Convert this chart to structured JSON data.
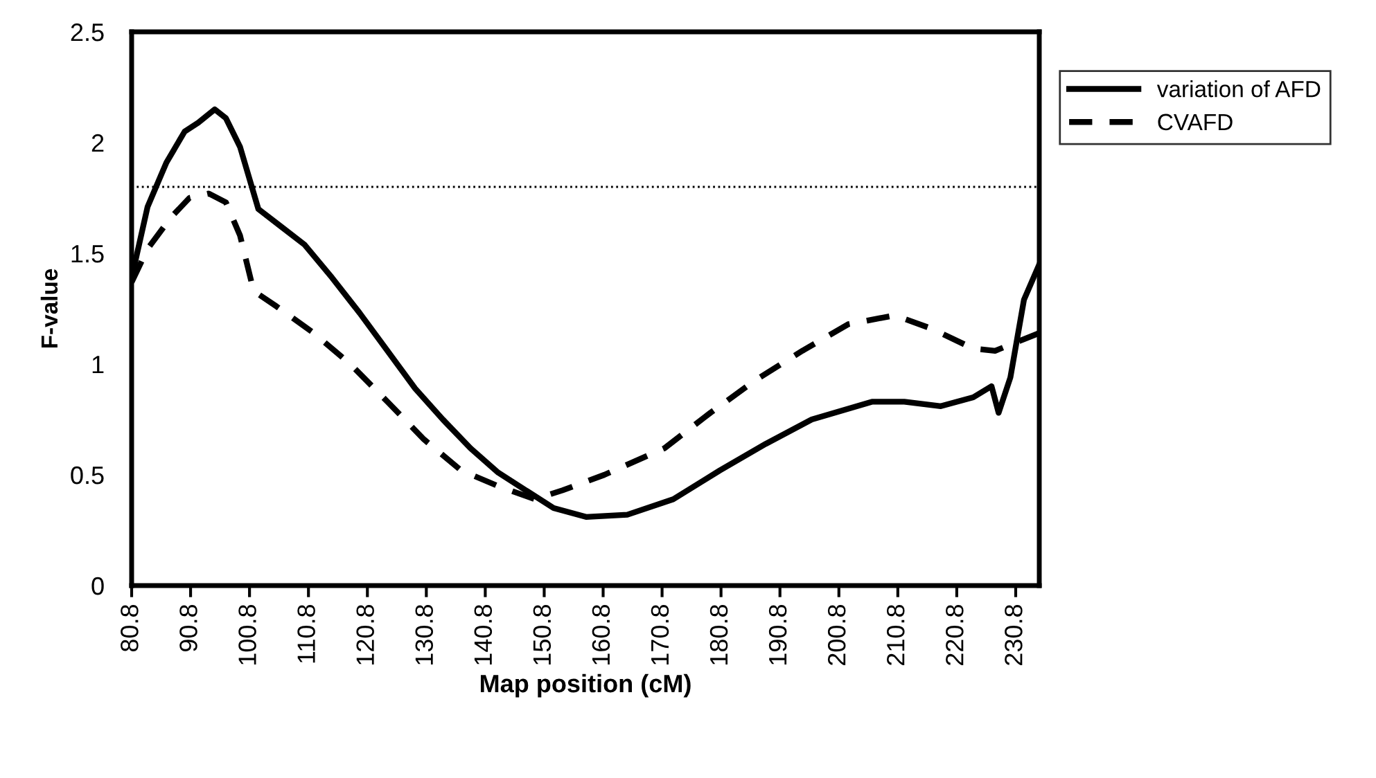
{
  "chart_data": {
    "type": "line",
    "xlabel": "Map position (cM)",
    "ylabel": "F-value",
    "xlim": [
      80.8,
      234.8
    ],
    "xticks": [
      80.8,
      90.8,
      100.8,
      110.8,
      120.8,
      130.8,
      140.8,
      150.8,
      160.8,
      170.8,
      180.8,
      190.8,
      200.8,
      210.8,
      220.8,
      230.8
    ],
    "ylim": [
      0,
      2.5
    ],
    "yticks": [
      0,
      0.5,
      1,
      1.5,
      2,
      2.5
    ],
    "grid": false,
    "legend": "top right",
    "marker": "none",
    "ref_lines": [
      {
        "axis": "y",
        "value": 1.8,
        "color": "#000000",
        "line_style": "dotted"
      }
    ],
    "series": [
      {
        "name": "variation of AFD",
        "color": "#000000",
        "line_style": "solid",
        "x": [
          80.8,
          83.5,
          86.7,
          89.8,
          92.1,
          94.9,
          96.8,
          99.2,
          102.3,
          106.2,
          110.1,
          114.8,
          119.5,
          124.2,
          128.9,
          133.6,
          138.3,
          143.0,
          147.7,
          152.4,
          157.9,
          164.9,
          172.7,
          180.6,
          188.4,
          196.2,
          206.4,
          211.9,
          218.1,
          223.6,
          226.7,
          227.9,
          229.9,
          232.2,
          234.8
        ],
        "values": [
          1.39,
          1.71,
          1.91,
          2.05,
          2.09,
          2.15,
          2.11,
          1.98,
          1.7,
          1.62,
          1.54,
          1.39,
          1.23,
          1.06,
          0.89,
          0.75,
          0.62,
          0.51,
          0.43,
          0.35,
          0.31,
          0.32,
          0.39,
          0.52,
          0.64,
          0.75,
          0.83,
          0.83,
          0.81,
          0.85,
          0.9,
          0.78,
          0.94,
          1.29,
          1.45
        ]
      },
      {
        "name": "CVAFD",
        "color": "#000000",
        "line_style": "dashed",
        "x": [
          80.8,
          83.5,
          87.4,
          90.6,
          93.9,
          96.8,
          99.2,
          101.5,
          105.4,
          111.7,
          117.9,
          124.2,
          130.4,
          136.7,
          142.9,
          149.2,
          153.9,
          161.0,
          171.2,
          179.0,
          186.8,
          194.6,
          202.4,
          210.3,
          216.5,
          223.6,
          227.3,
          234.8
        ],
        "values": [
          1.37,
          1.52,
          1.66,
          1.75,
          1.77,
          1.73,
          1.58,
          1.33,
          1.26,
          1.14,
          1.0,
          0.83,
          0.66,
          0.52,
          0.45,
          0.39,
          0.43,
          0.5,
          0.62,
          0.78,
          0.93,
          1.06,
          1.18,
          1.22,
          1.16,
          1.07,
          1.06,
          1.14
        ]
      }
    ]
  }
}
